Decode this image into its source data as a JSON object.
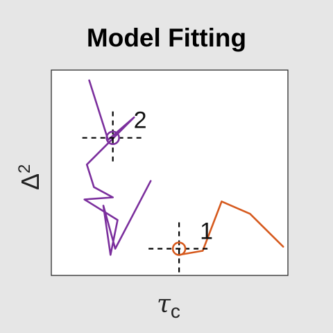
{
  "chart_data": {
    "type": "line",
    "title": "Model Fitting",
    "ylabel": {
      "base": "Δ",
      "sup": "2"
    },
    "xlabel": {
      "base": "τ",
      "sub": "c"
    },
    "xlim": [
      0,
      1
    ],
    "ylim": [
      0,
      1
    ],
    "grid": false,
    "series": [
      {
        "color": "#7b2f9d",
        "points": [
          [
            0.16,
            0.95
          ],
          [
            0.24,
            0.66
          ],
          [
            0.35,
            0.77
          ],
          [
            0.15,
            0.54
          ],
          [
            0.18,
            0.43
          ],
          [
            0.26,
            0.38
          ],
          [
            0.14,
            0.37
          ],
          [
            0.28,
            0.27
          ],
          [
            0.25,
            0.1
          ],
          [
            0.22,
            0.34
          ],
          [
            0.27,
            0.13
          ],
          [
            0.42,
            0.46
          ]
        ]
      },
      {
        "color": "#d65a1e",
        "points": [
          [
            0.54,
            0.1
          ],
          [
            0.64,
            0.12
          ],
          [
            0.72,
            0.36
          ],
          [
            0.84,
            0.3
          ],
          [
            0.98,
            0.14
          ]
        ]
      }
    ],
    "markers": [
      {
        "label": "1",
        "series": 1,
        "x": 0.54,
        "y": 0.13,
        "color": "#d65a1e"
      },
      {
        "label": "2",
        "series": 0,
        "x": 0.26,
        "y": 0.67,
        "color": "#7b2f9d"
      }
    ]
  }
}
